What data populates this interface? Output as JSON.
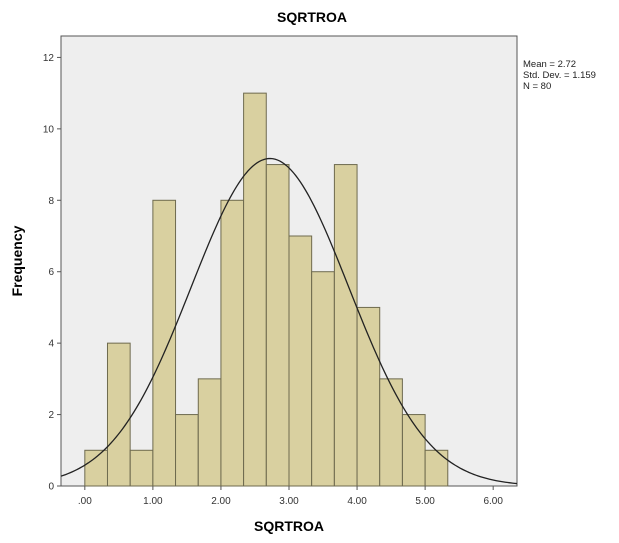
{
  "chart_data": {
    "type": "bar",
    "title": "SQRTROA",
    "xlabel": "SQRTROA",
    "ylabel": "Frequency",
    "bin_width": 0.333,
    "bin_starts": [
      0.0,
      0.333,
      0.667,
      1.0,
      1.333,
      1.667,
      2.0,
      2.333,
      2.667,
      3.0,
      3.333,
      3.667,
      4.0,
      4.333,
      4.667,
      5.0
    ],
    "values": [
      1,
      4,
      1,
      8,
      2,
      3,
      8,
      11,
      9,
      7,
      6,
      9,
      5,
      3,
      2,
      1
    ],
    "xlim": [
      -0.35,
      6.35
    ],
    "ylim": [
      0,
      12.6
    ],
    "x_ticks": [
      0.0,
      1.0,
      2.0,
      3.0,
      4.0,
      5.0,
      6.0
    ],
    "x_tick_labels": [
      ".00",
      "1.00",
      "2.00",
      "3.00",
      "4.00",
      "5.00",
      "6.00"
    ],
    "y_ticks": [
      0,
      2,
      4,
      6,
      8,
      10,
      12
    ],
    "y_tick_labels": [
      "0",
      "2",
      "4",
      "6",
      "8",
      "10",
      "12"
    ],
    "normal_curve": {
      "mean": 2.72,
      "sd": 1.159,
      "n": 80
    },
    "grid": false,
    "legend": "none",
    "colors": {
      "bar_fill": "#d9d0a0",
      "bar_stroke": "#6e6a4e",
      "plot_bg": "#eeeeee",
      "curve": "#222222"
    }
  },
  "stats": {
    "mean": "Mean = 2.72",
    "std_dev": "Std. Dev. = 1.159",
    "n": "N = 80"
  }
}
